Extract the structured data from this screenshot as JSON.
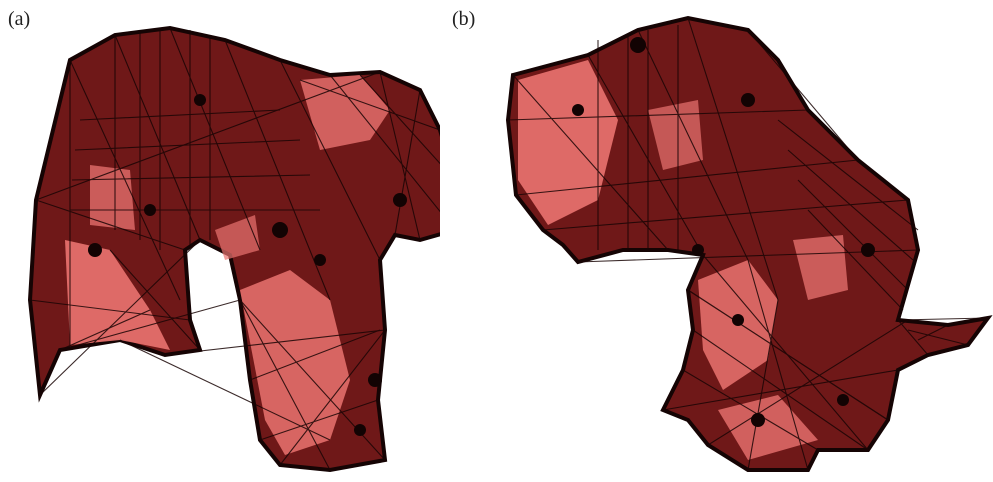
{
  "panels": [
    {
      "label": "(a)",
      "mesh_fill": "#e8706e",
      "mesh_dark": "#6a1414",
      "edge_color": "#1a0505"
    },
    {
      "label": "(b)",
      "mesh_fill": "#e8706e",
      "mesh_dark": "#6a1414",
      "edge_color": "#1a0505"
    }
  ]
}
